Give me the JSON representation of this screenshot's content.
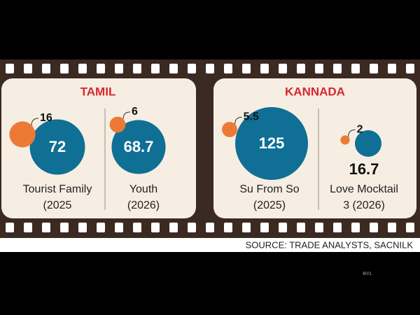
{
  "chart_data": {
    "type": "bubble",
    "source": "SOURCE: TRADE ANALYSTS, SACNILK",
    "credit": "BCCL",
    "panels": [
      {
        "title": "TAMIL",
        "films": [
          {
            "label_lines": [
              "Tourist Family",
              "(2025"
            ],
            "small_value": 16,
            "large_value": 72
          },
          {
            "label_lines": [
              "Youth",
              "(2026)"
            ],
            "small_value": 6,
            "large_value": 68.7
          }
        ]
      },
      {
        "title": "KANNADA",
        "films": [
          {
            "label_lines": [
              "Su From So",
              "(2025)"
            ],
            "small_value": 5.5,
            "large_value": 125
          },
          {
            "label_lines": [
              "Love Mocktail",
              "3 (2026)"
            ],
            "small_value": 2,
            "large_value": 16.7
          }
        ]
      }
    ],
    "small_color": "#ec7a35",
    "large_color": "#0f6f95",
    "title_color": "#d8262e"
  }
}
